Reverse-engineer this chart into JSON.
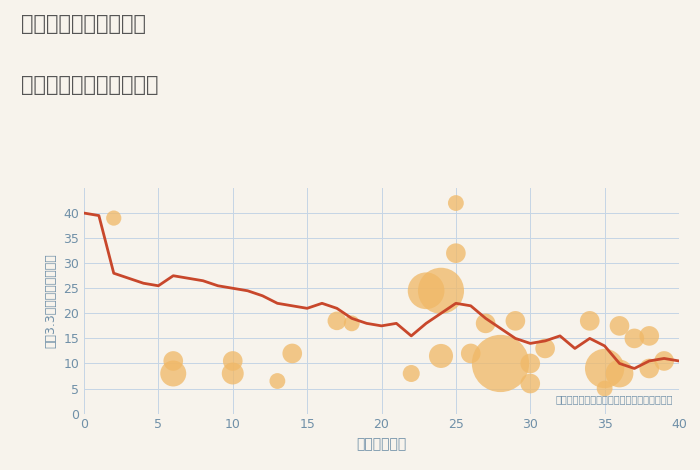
{
  "title_line1": "岐阜県下呂市三ツ渕の",
  "title_line2": "築年数別中古戸建て価格",
  "xlabel": "築年数（年）",
  "ylabel": "坪（3.3㎡）単価（万円）",
  "background_color": "#f7f3ec",
  "plot_bg_color": "#f7f3ec",
  "line_color": "#c8472b",
  "line_x": [
    0,
    1,
    2,
    3,
    4,
    5,
    6,
    7,
    8,
    9,
    10,
    11,
    12,
    13,
    14,
    15,
    16,
    17,
    18,
    19,
    20,
    21,
    22,
    23,
    24,
    25,
    26,
    27,
    28,
    29,
    30,
    31,
    32,
    33,
    34,
    35,
    36,
    37,
    38,
    39,
    40
  ],
  "line_y": [
    40.0,
    39.5,
    28.0,
    27.0,
    26.0,
    25.5,
    27.5,
    27.0,
    26.5,
    25.5,
    25.0,
    24.5,
    23.5,
    22.0,
    21.5,
    21.0,
    22.0,
    21.0,
    19.0,
    18.0,
    17.5,
    18.0,
    15.5,
    18.0,
    20.0,
    22.0,
    21.5,
    19.0,
    17.0,
    15.0,
    14.0,
    14.5,
    15.5,
    13.0,
    15.0,
    13.5,
    10.0,
    9.0,
    10.5,
    11.0,
    10.5
  ],
  "bubble_x": [
    2,
    6,
    6,
    10,
    10,
    13,
    14,
    17,
    18,
    22,
    23,
    24,
    24,
    25,
    25,
    26,
    27,
    28,
    29,
    30,
    30,
    31,
    34,
    35,
    35,
    36,
    36,
    37,
    38,
    38,
    39
  ],
  "bubble_y": [
    39,
    8,
    10.5,
    8,
    10.5,
    6.5,
    12,
    18.5,
    18,
    8,
    24.5,
    11.5,
    24.5,
    42,
    32,
    12,
    18,
    10,
    18.5,
    6,
    10,
    13,
    18.5,
    5,
    9,
    8,
    17.5,
    15,
    9,
    15.5,
    10.5
  ],
  "bubble_size": [
    120,
    350,
    200,
    250,
    200,
    130,
    200,
    180,
    130,
    150,
    700,
    300,
    1100,
    130,
    200,
    200,
    200,
    1700,
    200,
    200,
    200,
    200,
    200,
    130,
    800,
    400,
    200,
    200,
    200,
    200,
    200
  ],
  "bubble_color": "#f0b866",
  "bubble_alpha": 0.75,
  "annotation": "円の大きさは、取引のあった物件面積を示す",
  "xlim": [
    0,
    40
  ],
  "ylim": [
    0,
    45
  ],
  "xticks": [
    0,
    5,
    10,
    15,
    20,
    25,
    30,
    35,
    40
  ],
  "yticks": [
    0,
    5,
    10,
    15,
    20,
    25,
    30,
    35,
    40
  ],
  "grid_color": "#c5d5e5",
  "title_color": "#555555",
  "axis_label_color": "#7090a8",
  "tick_color": "#7090a8",
  "annotation_color": "#7090a8"
}
